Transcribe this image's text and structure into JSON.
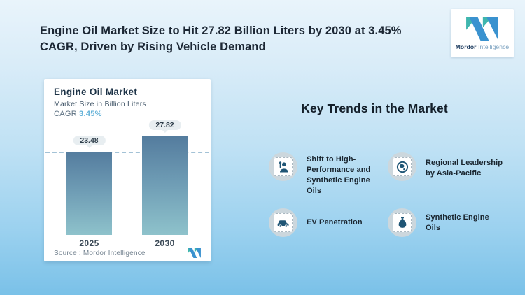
{
  "title": "Engine Oil Market Size to Hit 27.82 Billion Liters by 2030 at 3.45% CAGR, Driven by Rising Vehicle Demand",
  "logo": {
    "brand_bold": "Mordor",
    "brand_light": "Intelligence"
  },
  "chart_card": {
    "title": "Engine Oil Market",
    "subtitle": "Market Size in Billion Liters",
    "cagr_label": "CAGR",
    "cagr_value": "3.45%",
    "source_label": "Source :  Mordor Intelligence"
  },
  "chart_data": {
    "type": "bar",
    "categories": [
      "2025",
      "2030"
    ],
    "values": [
      23.48,
      27.82
    ],
    "title": "Engine Oil Market",
    "ylabel": "Market Size in Billion Liters",
    "ylim": [
      0,
      30
    ],
    "grid": false,
    "annotations": {
      "cagr": "3.45%",
      "reference_line_at": 23.48
    },
    "value_labels": [
      "23.48",
      "27.82"
    ]
  },
  "trends": {
    "heading": "Key Trends in the Market",
    "items": [
      {
        "icon": "engineer-person-icon",
        "label": "Shift to High-Performance and Synthetic Engine Oils"
      },
      {
        "icon": "globe-asia-icon",
        "label": "Regional Leadership by Asia-Pacific"
      },
      {
        "icon": "car-icon",
        "label": "EV Penetration"
      },
      {
        "icon": "oil-bottle-icon",
        "label": "Synthetic Engine Oils"
      }
    ]
  },
  "colors": {
    "accent_teal": "#3fb6ae",
    "accent_blue": "#3a92cf",
    "cagr_blue": "#64b2d8",
    "bar_gradient_top": "#547c9e",
    "bar_gradient_bottom": "#8ec2cb",
    "icon_navy": "#1f5575",
    "background_top": "#e9f4fb",
    "background_bottom": "#7ac1e8"
  }
}
